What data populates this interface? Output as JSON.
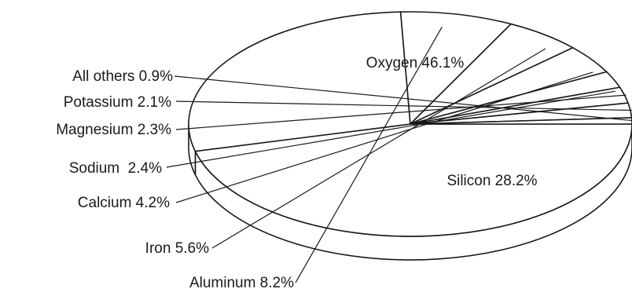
{
  "chart_data": {
    "type": "pie",
    "title": "",
    "style": "3d-tilted",
    "colors": {
      "fill": "#ffffff",
      "stroke": "#1a1a1a"
    },
    "slices": [
      {
        "name": "Oxygen",
        "value": 46.1,
        "label": "Oxygen 46.1%"
      },
      {
        "name": "Silicon",
        "value": 28.2,
        "label": "Silicon 28.2%"
      },
      {
        "name": "Aluminum",
        "value": 8.2,
        "label": "Aluminum 8.2%"
      },
      {
        "name": "Iron",
        "value": 5.6,
        "label": "Iron 5.6%"
      },
      {
        "name": "Calcium",
        "value": 4.2,
        "label": "Calcium 4.2%"
      },
      {
        "name": "Sodium",
        "value": 2.4,
        "label": "Sodium  2.4%"
      },
      {
        "name": "Magnesium",
        "value": 2.3,
        "label": "Magnesium 2.3%"
      },
      {
        "name": "Potassium",
        "value": 2.1,
        "label": "Potassium 2.1%"
      },
      {
        "name": "All others",
        "value": 0.9,
        "label": "All others 0.9%"
      }
    ]
  }
}
